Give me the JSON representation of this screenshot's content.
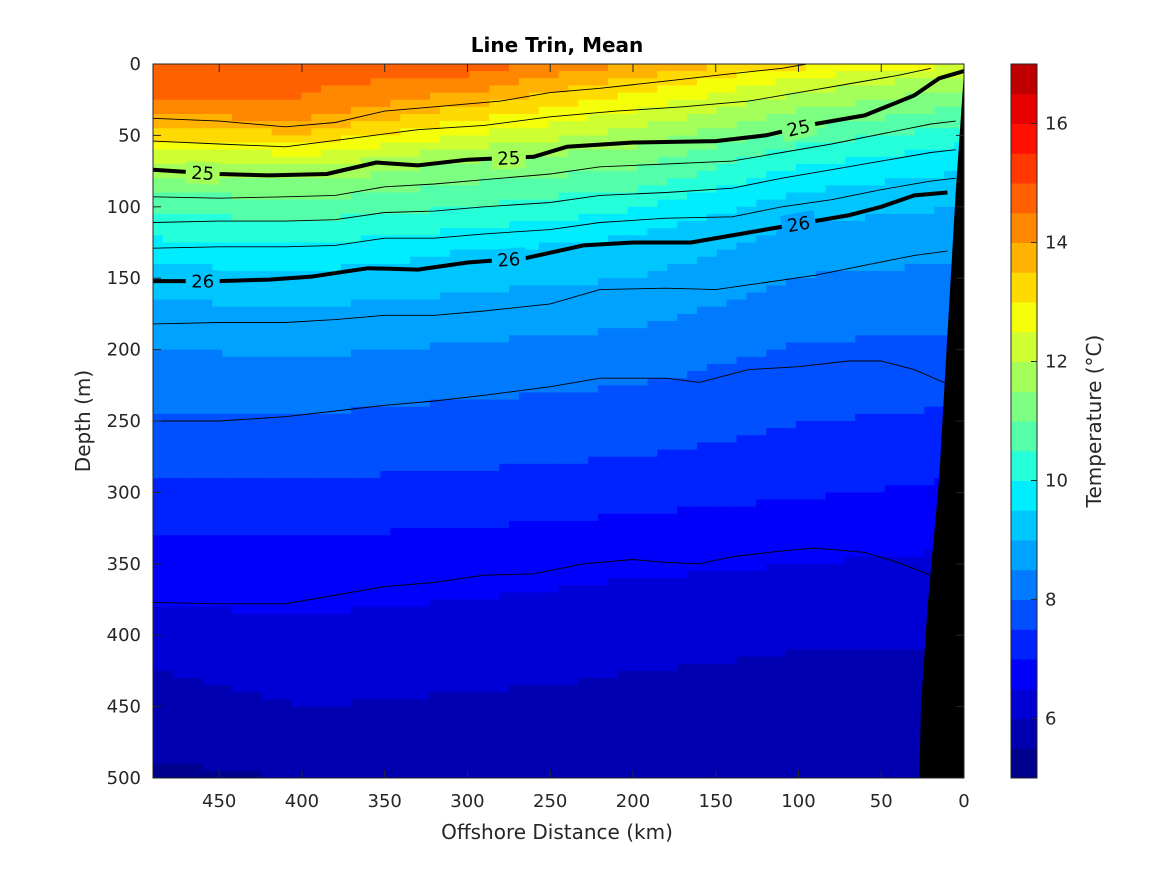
{
  "chart_data": {
    "type": "heatmap",
    "title": "Line Trin, Mean",
    "xlabel": "Offshore Distance (km)",
    "ylabel": "Depth (m)",
    "xlim": [
      490,
      0
    ],
    "ylim": [
      0,
      500
    ],
    "x_reversed": true,
    "y_reversed": true,
    "x_ticks": [
      450,
      400,
      350,
      300,
      250,
      200,
      150,
      100,
      50,
      0
    ],
    "x_tick_labels": [
      "450",
      "400",
      "350",
      "300",
      "250",
      "200",
      "150",
      "100",
      "50",
      "0"
    ],
    "y_ticks": [
      0,
      50,
      100,
      150,
      200,
      250,
      300,
      350,
      400,
      450,
      500
    ],
    "y_tick_labels": [
      "0",
      "50",
      "100",
      "150",
      "200",
      "250",
      "300",
      "350",
      "400",
      "450",
      "500"
    ],
    "colorbar": {
      "label": "Temperature (°C)",
      "range": [
        5,
        17
      ],
      "ticks": [
        6,
        8,
        10,
        12,
        14,
        16
      ],
      "tick_labels": [
        "6",
        "8",
        "10",
        "12",
        "14",
        "16"
      ],
      "levels": [
        5,
        5.5,
        6,
        6.5,
        7,
        7.5,
        8,
        8.5,
        9,
        9.5,
        10,
        10.5,
        11,
        11.5,
        12,
        12.5,
        13,
        13.5,
        14,
        14.5,
        15,
        15.5,
        16,
        16.5,
        17
      ],
      "colors": [
        "#00008f",
        "#0000b0",
        "#0000d6",
        "#0000fb",
        "#0022ff",
        "#0050ff",
        "#007aff",
        "#00a2ff",
        "#00c6ff",
        "#00ecff",
        "#25ffda",
        "#55ffaa",
        "#7dff82",
        "#a5ff5a",
        "#cdff32",
        "#f5ff0a",
        "#ffda00",
        "#ffb200",
        "#ff8800",
        "#ff6000",
        "#ff3800",
        "#ff1000",
        "#e60000",
        "#c00000",
        "#990000"
      ]
    },
    "temperature_profiles": [
      {
        "x": 490,
        "depths": [
          0,
          25,
          45,
          60,
          75,
          95,
          115,
          140,
          165,
          200,
          245,
          290,
          330,
          380,
          425,
          500
        ],
        "temps": [
          14.8,
          14.6,
          13.6,
          12.4,
          11.6,
          10.8,
          10.2,
          9.5,
          9.0,
          8.5,
          8.0,
          7.5,
          7.0,
          6.5,
          6.0,
          5.4
        ]
      },
      {
        "x": 400,
        "depths": [
          0,
          30,
          50,
          65,
          80,
          100,
          120,
          145,
          170,
          205,
          245,
          290,
          330,
          385,
          450,
          500
        ],
        "temps": [
          14.8,
          14.4,
          13.4,
          12.4,
          11.6,
          10.8,
          10.2,
          9.5,
          9.0,
          8.5,
          8.0,
          7.5,
          7.0,
          6.5,
          6.0,
          5.5
        ]
      },
      {
        "x": 300,
        "depths": [
          0,
          20,
          40,
          55,
          70,
          90,
          110,
          130,
          160,
          195,
          235,
          285,
          325,
          375,
          440,
          500
        ],
        "temps": [
          14.8,
          14.0,
          13.0,
          12.2,
          11.4,
          10.8,
          10.2,
          9.5,
          9.0,
          8.5,
          8.0,
          7.5,
          7.0,
          6.5,
          6.0,
          5.6
        ]
      },
      {
        "x": 200,
        "depths": [
          0,
          12,
          30,
          45,
          60,
          80,
          95,
          120,
          150,
          185,
          225,
          275,
          315,
          360,
          425,
          500
        ],
        "temps": [
          14.0,
          13.4,
          12.6,
          12.0,
          11.4,
          10.8,
          10.2,
          9.5,
          9.0,
          8.5,
          8.0,
          7.5,
          7.0,
          6.5,
          6.0,
          5.7
        ]
      },
      {
        "x": 100,
        "depths": [
          0,
          8,
          20,
          35,
          50,
          65,
          85,
          110,
          140,
          175,
          215,
          265,
          305,
          350,
          410,
          500
        ],
        "temps": [
          13.2,
          12.6,
          12.0,
          11.4,
          10.8,
          10.2,
          9.6,
          9.0,
          8.6,
          8.2,
          7.8,
          7.4,
          7.0,
          6.5,
          6.0,
          5.6
        ]
      },
      {
        "x": 0,
        "depths": [
          0,
          5,
          15,
          30,
          45,
          60,
          80,
          100,
          130,
          165,
          210,
          260,
          300,
          350,
          410,
          500
        ],
        "temps": [
          12.6,
          12.2,
          11.6,
          11.0,
          10.4,
          9.9,
          9.4,
          9.0,
          8.6,
          8.2,
          7.8,
          7.3,
          6.9,
          6.4,
          6.0,
          5.6
        ]
      }
    ],
    "isopycnals": [
      {
        "label": "25",
        "label_x": [
          460,
          275,
          100
        ],
        "points": [
          [
            490,
            74
          ],
          [
            450,
            77
          ],
          [
            420,
            78
          ],
          [
            385,
            77
          ],
          [
            355,
            69
          ],
          [
            330,
            71
          ],
          [
            300,
            67
          ],
          [
            260,
            65
          ],
          [
            240,
            58
          ],
          [
            200,
            55
          ],
          [
            150,
            54
          ],
          [
            120,
            50
          ],
          [
            90,
            42
          ],
          [
            60,
            36
          ],
          [
            30,
            22
          ],
          [
            15,
            10
          ],
          [
            0,
            5
          ]
        ]
      },
      {
        "label": "26",
        "label_x": [
          460,
          275,
          100
        ],
        "points": [
          [
            490,
            152
          ],
          [
            450,
            152
          ],
          [
            420,
            151
          ],
          [
            395,
            149
          ],
          [
            360,
            143
          ],
          [
            330,
            144
          ],
          [
            300,
            139
          ],
          [
            265,
            136
          ],
          [
            230,
            127
          ],
          [
            200,
            125
          ],
          [
            165,
            125
          ],
          [
            130,
            118
          ],
          [
            100,
            112
          ],
          [
            70,
            106
          ],
          [
            50,
            100
          ],
          [
            30,
            92
          ],
          [
            10,
            90
          ]
        ]
      }
    ],
    "thin_isotherms": [
      [
        [
          490,
          38
        ],
        [
          450,
          40
        ],
        [
          410,
          44
        ],
        [
          380,
          41
        ],
        [
          350,
          33
        ],
        [
          320,
          30
        ],
        [
          280,
          26
        ],
        [
          250,
          20
        ],
        [
          220,
          17
        ],
        [
          180,
          12
        ],
        [
          150,
          8
        ],
        [
          110,
          3
        ],
        [
          95,
          0
        ]
      ],
      [
        [
          490,
          54
        ],
        [
          450,
          56
        ],
        [
          410,
          58
        ],
        [
          370,
          52
        ],
        [
          330,
          46
        ],
        [
          290,
          43
        ],
        [
          250,
          37
        ],
        [
          210,
          33
        ],
        [
          170,
          30
        ],
        [
          130,
          26
        ],
        [
          100,
          20
        ],
        [
          70,
          14
        ],
        [
          40,
          8
        ],
        [
          20,
          3
        ]
      ],
      [
        [
          490,
          93
        ],
        [
          450,
          94
        ],
        [
          410,
          93
        ],
        [
          380,
          92
        ],
        [
          350,
          86
        ],
        [
          320,
          84
        ],
        [
          290,
          81
        ],
        [
          250,
          77
        ],
        [
          220,
          72
        ],
        [
          180,
          70
        ],
        [
          140,
          68
        ],
        [
          110,
          62
        ],
        [
          80,
          56
        ],
        [
          50,
          49
        ],
        [
          20,
          42
        ],
        [
          5,
          40
        ]
      ],
      [
        [
          490,
          111
        ],
        [
          450,
          110
        ],
        [
          410,
          110
        ],
        [
          380,
          109
        ],
        [
          350,
          104
        ],
        [
          320,
          103
        ],
        [
          290,
          100
        ],
        [
          250,
          97
        ],
        [
          220,
          92
        ],
        [
          180,
          90
        ],
        [
          140,
          87
        ],
        [
          110,
          80
        ],
        [
          80,
          74
        ],
        [
          50,
          68
        ],
        [
          20,
          62
        ],
        [
          5,
          60
        ]
      ],
      [
        [
          490,
          129
        ],
        [
          450,
          128
        ],
        [
          410,
          128
        ],
        [
          380,
          127
        ],
        [
          350,
          122
        ],
        [
          320,
          122
        ],
        [
          290,
          119
        ],
        [
          250,
          116
        ],
        [
          220,
          111
        ],
        [
          180,
          108
        ],
        [
          140,
          107
        ],
        [
          110,
          100
        ],
        [
          80,
          95
        ],
        [
          50,
          88
        ],
        [
          20,
          82
        ],
        [
          5,
          80
        ]
      ],
      [
        [
          490,
          182
        ],
        [
          450,
          181
        ],
        [
          410,
          181
        ],
        [
          380,
          179
        ],
        [
          350,
          176
        ],
        [
          320,
          176
        ],
        [
          290,
          173
        ],
        [
          250,
          168
        ],
        [
          220,
          158
        ],
        [
          180,
          157
        ],
        [
          150,
          158
        ],
        [
          120,
          153
        ],
        [
          90,
          148
        ],
        [
          60,
          141
        ],
        [
          30,
          134
        ],
        [
          10,
          131
        ]
      ],
      [
        [
          490,
          250
        ],
        [
          450,
          250
        ],
        [
          410,
          247
        ],
        [
          380,
          243
        ],
        [
          350,
          239
        ],
        [
          320,
          236
        ],
        [
          290,
          232
        ],
        [
          250,
          226
        ],
        [
          220,
          220
        ],
        [
          180,
          220
        ],
        [
          160,
          223
        ],
        [
          130,
          214
        ],
        [
          100,
          212
        ],
        [
          70,
          208
        ],
        [
          50,
          208
        ],
        [
          30,
          214
        ],
        [
          10,
          224
        ]
      ],
      [
        [
          490,
          377
        ],
        [
          450,
          378
        ],
        [
          410,
          378
        ],
        [
          380,
          372
        ],
        [
          350,
          366
        ],
        [
          320,
          363
        ],
        [
          290,
          358
        ],
        [
          260,
          357
        ],
        [
          230,
          350
        ],
        [
          200,
          347
        ],
        [
          180,
          349
        ],
        [
          160,
          350
        ],
        [
          140,
          345
        ],
        [
          110,
          341
        ],
        [
          90,
          339
        ],
        [
          60,
          342
        ],
        [
          40,
          349
        ],
        [
          20,
          358
        ],
        [
          10,
          364
        ]
      ]
    ],
    "bottom_mask": {
      "color": "#000000",
      "boundary": [
        [
          0,
          5
        ],
        [
          5,
          90
        ],
        [
          10,
          190
        ],
        [
          15,
          290
        ],
        [
          22,
          380
        ],
        [
          26,
          450
        ],
        [
          27,
          500
        ]
      ]
    }
  }
}
